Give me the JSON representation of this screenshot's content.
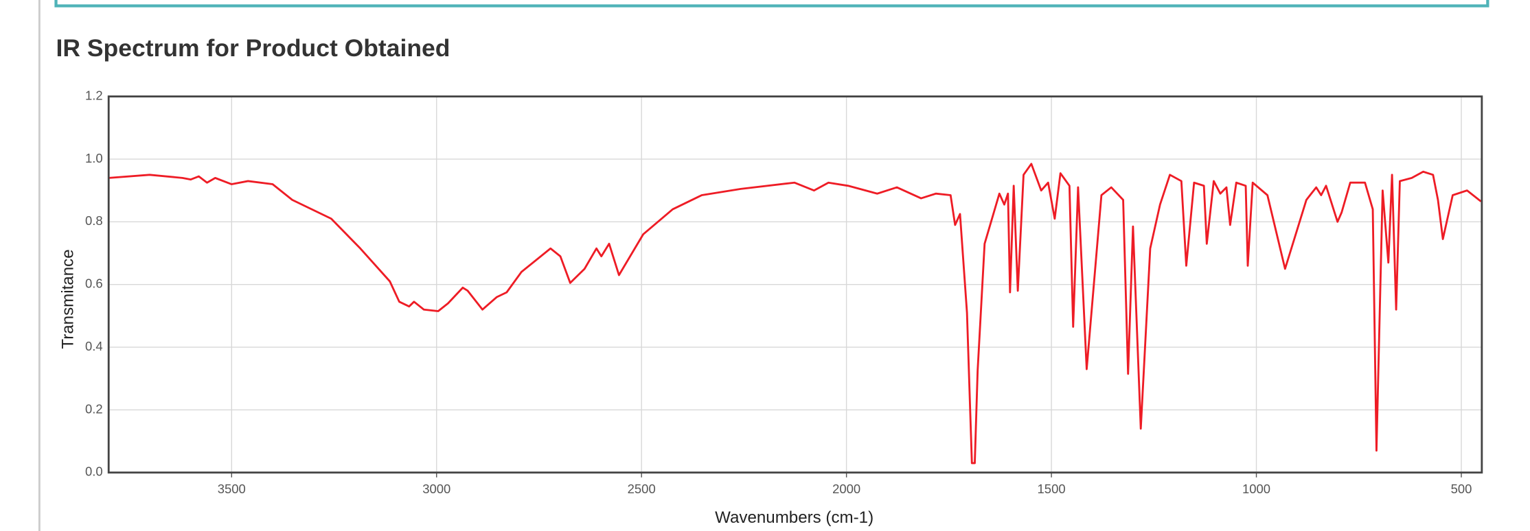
{
  "chart_data": {
    "type": "line",
    "title": "IR Spectrum for Product Obtained",
    "xlabel": "Wavenumbers (cm-1)",
    "ylabel": "Transmitance",
    "color": "#ee1c25",
    "x": [
      3800,
      3700,
      3620,
      3600,
      3580,
      3560,
      3540,
      3500,
      3460,
      3400,
      3352,
      3257,
      3186,
      3114,
      3091,
      3067,
      3055,
      3031,
      2996,
      2972,
      2936,
      2924,
      2888,
      2853,
      2829,
      2793,
      2722,
      2698,
      2674,
      2639,
      2610,
      2598,
      2579,
      2555,
      2496,
      2424,
      2353,
      2258,
      2127,
      2079,
      2044,
      1996,
      1925,
      1877,
      1818,
      1782,
      1746,
      1735,
      1723,
      1706,
      1694,
      1687,
      1680,
      1663,
      1627,
      1615,
      1606,
      1601,
      1592,
      1582,
      1568,
      1549,
      1525,
      1508,
      1492,
      1478,
      1456,
      1447,
      1435,
      1414,
      1378,
      1354,
      1325,
      1313,
      1301,
      1282,
      1259,
      1235,
      1211,
      1183,
      1171,
      1152,
      1128,
      1121,
      1104,
      1088,
      1073,
      1064,
      1049,
      1026,
      1021,
      1009,
      973,
      930,
      878,
      854,
      842,
      830,
      802,
      792,
      771,
      735,
      716,
      707,
      692,
      678,
      669,
      659,
      650,
      621,
      593,
      569,
      557,
      545,
      521,
      486,
      452
    ],
    "values": [
      0.94,
      0.95,
      0.94,
      0.935,
      0.945,
      0.925,
      0.94,
      0.92,
      0.93,
      0.92,
      0.87,
      0.81,
      0.715,
      0.61,
      0.545,
      0.53,
      0.545,
      0.52,
      0.515,
      0.54,
      0.59,
      0.58,
      0.52,
      0.56,
      0.575,
      0.64,
      0.715,
      0.69,
      0.605,
      0.65,
      0.715,
      0.69,
      0.73,
      0.63,
      0.76,
      0.84,
      0.885,
      0.905,
      0.925,
      0.9,
      0.925,
      0.915,
      0.89,
      0.91,
      0.875,
      0.89,
      0.885,
      0.79,
      0.825,
      0.51,
      0.03,
      0.03,
      0.325,
      0.73,
      0.89,
      0.855,
      0.89,
      0.575,
      0.915,
      0.58,
      0.95,
      0.985,
      0.9,
      0.925,
      0.81,
      0.955,
      0.915,
      0.465,
      0.91,
      0.33,
      0.885,
      0.91,
      0.87,
      0.315,
      0.785,
      0.14,
      0.715,
      0.855,
      0.95,
      0.93,
      0.66,
      0.925,
      0.915,
      0.73,
      0.93,
      0.89,
      0.91,
      0.79,
      0.925,
      0.915,
      0.66,
      0.925,
      0.885,
      0.65,
      0.87,
      0.91,
      0.885,
      0.915,
      0.8,
      0.83,
      0.925,
      0.925,
      0.84,
      0.07,
      0.9,
      0.67,
      0.95,
      0.52,
      0.93,
      0.94,
      0.96,
      0.95,
      0.87,
      0.745,
      0.885,
      0.9,
      0.865
    ],
    "xlim": [
      3800,
      450
    ],
    "xticks": [
      3500,
      3000,
      2500,
      2000,
      1500,
      1000,
      500
    ],
    "ylim": [
      0,
      1.2
    ],
    "yticks": [
      {
        "value": 0,
        "label": "0.0"
      },
      0.2,
      0.4,
      0.6,
      0.8,
      {
        "value": 1,
        "label": "1.0"
      },
      1.2
    ],
    "grid": true
  }
}
